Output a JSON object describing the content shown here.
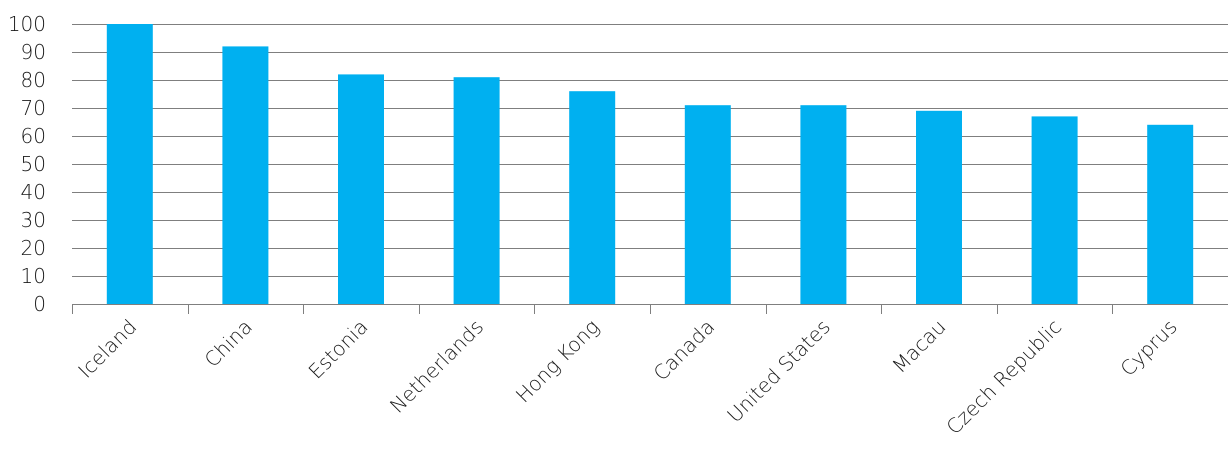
{
  "chart_data": {
    "type": "bar",
    "title": "",
    "xlabel": "",
    "ylabel": "",
    "categories": [
      "Iceland",
      "China",
      "Estonia",
      "Netherlands",
      "Hong Kong",
      "Canada",
      "United States",
      "Macau",
      "Czech Republic",
      "Cyprus"
    ],
    "values": [
      100,
      92,
      82,
      81,
      76,
      71,
      71,
      69,
      67,
      64
    ],
    "ylim": [
      0,
      100
    ],
    "yticks": [
      0,
      10,
      20,
      30,
      40,
      50,
      60,
      70,
      80,
      90,
      100
    ],
    "grid": true,
    "legend": "none",
    "bar_color": "#00b0f0",
    "grid_color": "#7f7f7f"
  }
}
